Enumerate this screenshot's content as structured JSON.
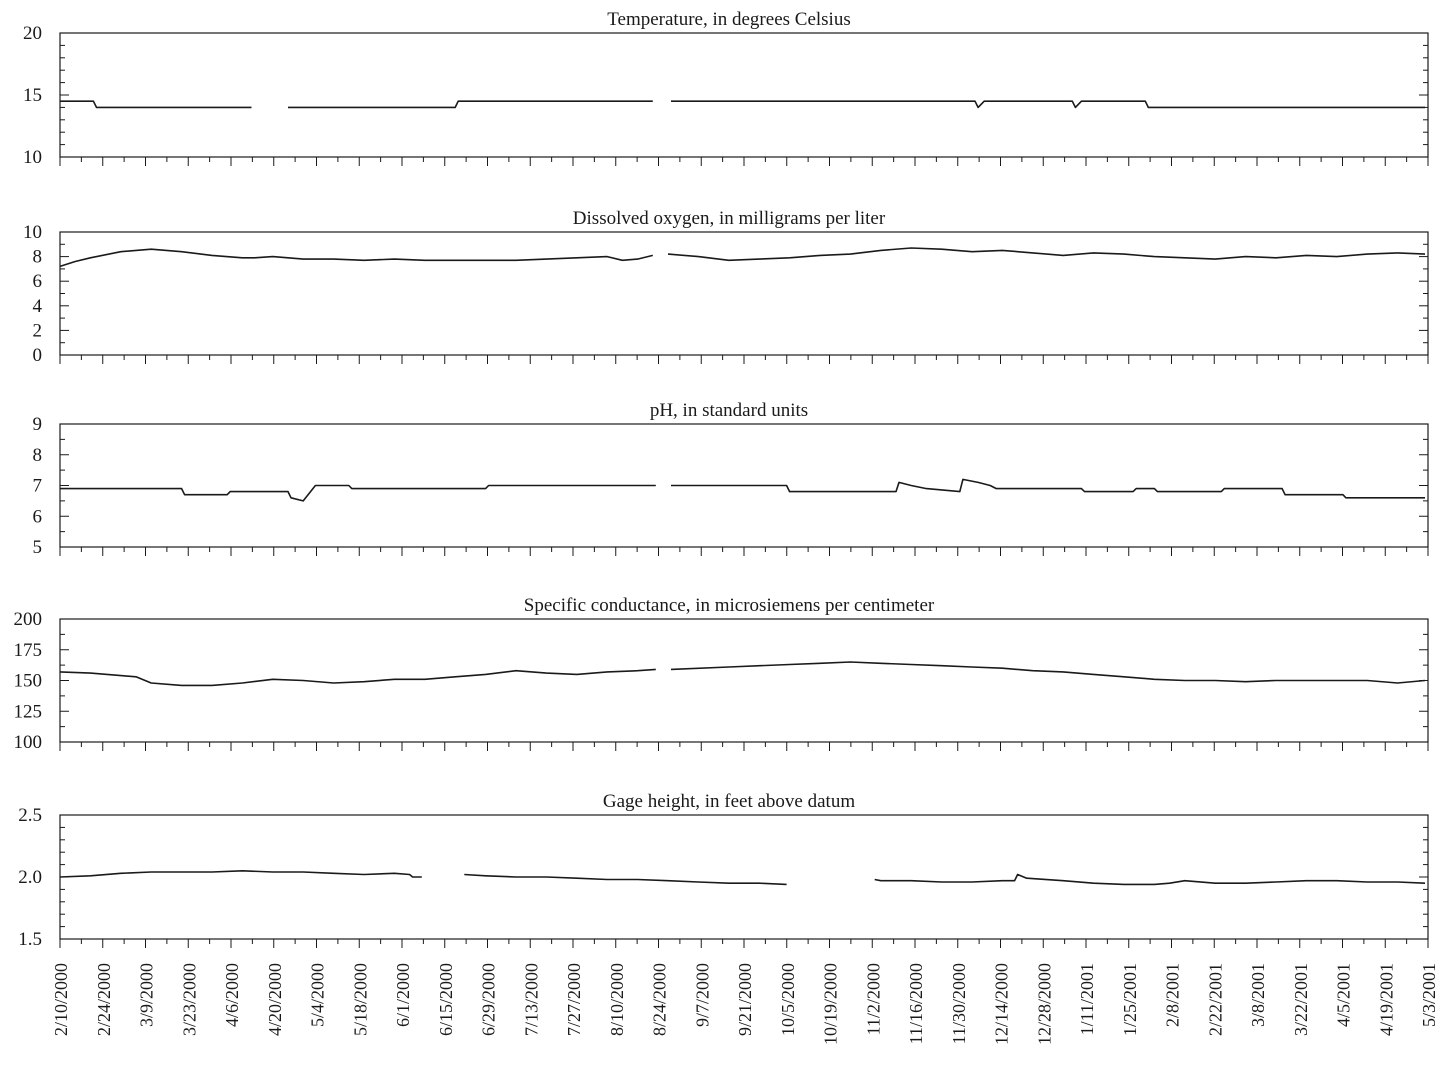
{
  "chart_data": [
    {
      "type": "line",
      "title": "Temperature, in degrees Celsius",
      "ylim": [
        10,
        20
      ],
      "yticks": [
        "10",
        "15",
        "20"
      ],
      "series": [
        {
          "values": [
            [
              0,
              14.5
            ],
            [
              1.1,
              14.5
            ],
            [
              1.2,
              14.0
            ],
            [
              6.3,
              14.0
            ],
            [
              null,
              null
            ],
            [
              7.5,
              14.0
            ],
            [
              13.0,
              14.0
            ],
            [
              13.1,
              14.5
            ],
            [
              19.5,
              14.5
            ],
            [
              null,
              null
            ],
            [
              20.1,
              14.5
            ],
            [
              30.1,
              14.5
            ],
            [
              30.2,
              14.0
            ],
            [
              30.4,
              14.5
            ],
            [
              33.3,
              14.5
            ],
            [
              33.4,
              14.0
            ],
            [
              33.6,
              14.5
            ],
            [
              35.7,
              14.5
            ],
            [
              35.8,
              14.0
            ],
            [
              44.9,
              14.0
            ]
          ]
        }
      ]
    },
    {
      "type": "line",
      "title": "Dissolved oxygen, in milligrams per liter",
      "ylim": [
        0,
        10
      ],
      "yticks": [
        "0",
        "2",
        "4",
        "6",
        "8",
        "10"
      ],
      "series": [
        {
          "values": [
            [
              0,
              7.2
            ],
            [
              0.5,
              7.6
            ],
            [
              1,
              7.9
            ],
            [
              2,
              8.4
            ],
            [
              3,
              8.6
            ],
            [
              4,
              8.4
            ],
            [
              5,
              8.1
            ],
            [
              6,
              7.9
            ],
            [
              6.4,
              7.9
            ],
            [
              7,
              8.0
            ],
            [
              8,
              7.8
            ],
            [
              9,
              7.8
            ],
            [
              10,
              7.7
            ],
            [
              11,
              7.8
            ],
            [
              12,
              7.7
            ],
            [
              13,
              7.7
            ],
            [
              14,
              7.7
            ],
            [
              15,
              7.7
            ],
            [
              16,
              7.8
            ],
            [
              17,
              7.9
            ],
            [
              18,
              8.0
            ],
            [
              18.5,
              7.7
            ],
            [
              19,
              7.8
            ],
            [
              19.5,
              8.1
            ],
            [
              null,
              null
            ],
            [
              20,
              8.2
            ],
            [
              21,
              8.0
            ],
            [
              22,
              7.7
            ],
            [
              23,
              7.8
            ],
            [
              24,
              7.9
            ],
            [
              25,
              8.1
            ],
            [
              26,
              8.2
            ],
            [
              27,
              8.5
            ],
            [
              28,
              8.7
            ],
            [
              29,
              8.6
            ],
            [
              30,
              8.4
            ],
            [
              31,
              8.5
            ],
            [
              32,
              8.3
            ],
            [
              33,
              8.1
            ],
            [
              34,
              8.3
            ],
            [
              35,
              8.2
            ],
            [
              36,
              8.0
            ],
            [
              37,
              7.9
            ],
            [
              38,
              7.8
            ],
            [
              39,
              8.0
            ],
            [
              40,
              7.9
            ],
            [
              41,
              8.1
            ],
            [
              42,
              8.0
            ],
            [
              43,
              8.2
            ],
            [
              44,
              8.3
            ],
            [
              44.9,
              8.2
            ]
          ]
        }
      ]
    },
    {
      "type": "line",
      "title": "pH, in standard units",
      "ylim": [
        5,
        9
      ],
      "yticks": [
        "5",
        "6",
        "7",
        "8",
        "9"
      ],
      "series": [
        {
          "values": [
            [
              0,
              6.9
            ],
            [
              4,
              6.9
            ],
            [
              4.1,
              6.7
            ],
            [
              5.5,
              6.7
            ],
            [
              5.6,
              6.8
            ],
            [
              7.5,
              6.8
            ],
            [
              7.6,
              6.6
            ],
            [
              8,
              6.5
            ],
            [
              8.4,
              7.0
            ],
            [
              9.5,
              7.0
            ],
            [
              9.6,
              6.9
            ],
            [
              14,
              6.9
            ],
            [
              14.1,
              7.0
            ],
            [
              19.6,
              7.0
            ],
            [
              null,
              null
            ],
            [
              20.1,
              7.0
            ],
            [
              23.9,
              7.0
            ],
            [
              24,
              6.8
            ],
            [
              27.5,
              6.8
            ],
            [
              27.6,
              7.1
            ],
            [
              28,
              7.0
            ],
            [
              28.5,
              6.9
            ],
            [
              29.6,
              6.8
            ],
            [
              29.7,
              7.2
            ],
            [
              30.2,
              7.1
            ],
            [
              30.6,
              7.0
            ],
            [
              30.8,
              6.9
            ],
            [
              33.6,
              6.9
            ],
            [
              33.7,
              6.8
            ],
            [
              35.3,
              6.8
            ],
            [
              35.4,
              6.9
            ],
            [
              36,
              6.9
            ],
            [
              36.1,
              6.8
            ],
            [
              38.2,
              6.8
            ],
            [
              38.3,
              6.9
            ],
            [
              40.2,
              6.9
            ],
            [
              40.3,
              6.7
            ],
            [
              42.2,
              6.7
            ],
            [
              42.3,
              6.6
            ],
            [
              44.9,
              6.6
            ]
          ]
        }
      ]
    },
    {
      "type": "line",
      "title": "Specific conductance, in microsiemens per centimeter",
      "ylim": [
        100,
        200
      ],
      "yticks": [
        "100",
        "125",
        "150",
        "175",
        "200"
      ],
      "series": [
        {
          "values": [
            [
              0,
              157
            ],
            [
              1,
              156
            ],
            [
              2,
              154
            ],
            [
              2.5,
              153
            ],
            [
              3,
              148
            ],
            [
              4,
              146
            ],
            [
              5,
              146
            ],
            [
              6,
              148
            ],
            [
              7,
              151
            ],
            [
              8,
              150
            ],
            [
              9,
              148
            ],
            [
              10,
              149
            ],
            [
              11,
              151
            ],
            [
              12,
              151
            ],
            [
              13,
              153
            ],
            [
              14,
              155
            ],
            [
              15,
              158
            ],
            [
              16,
              156
            ],
            [
              17,
              155
            ],
            [
              18,
              157
            ],
            [
              19,
              158
            ],
            [
              19.6,
              159
            ],
            [
              null,
              null
            ],
            [
              20.1,
              159
            ],
            [
              22,
              161
            ],
            [
              24,
              163
            ],
            [
              25,
              164
            ],
            [
              26,
              165
            ],
            [
              27,
              164
            ],
            [
              28,
              163
            ],
            [
              29,
              162
            ],
            [
              30,
              161
            ],
            [
              31,
              160
            ],
            [
              32,
              158
            ],
            [
              33,
              157
            ],
            [
              34,
              155
            ],
            [
              35,
              153
            ],
            [
              36,
              151
            ],
            [
              37,
              150
            ],
            [
              38,
              150
            ],
            [
              39,
              149
            ],
            [
              40,
              150
            ],
            [
              41,
              150
            ],
            [
              42,
              150
            ],
            [
              43,
              150
            ],
            [
              44,
              148
            ],
            [
              44.9,
              150
            ]
          ]
        }
      ]
    },
    {
      "type": "line",
      "title": "Gage height, in feet above datum",
      "ylim": [
        1.5,
        2.5
      ],
      "yticks": [
        "1.5",
        "2.0",
        "2.5"
      ],
      "series": [
        {
          "values": [
            [
              0,
              2.0
            ],
            [
              1,
              2.01
            ],
            [
              2,
              2.03
            ],
            [
              3,
              2.04
            ],
            [
              4,
              2.04
            ],
            [
              5,
              2.04
            ],
            [
              6,
              2.05
            ],
            [
              7,
              2.04
            ],
            [
              8,
              2.04
            ],
            [
              9,
              2.03
            ],
            [
              10,
              2.02
            ],
            [
              11,
              2.03
            ],
            [
              11.5,
              2.02
            ],
            [
              11.6,
              2.0
            ],
            [
              11.9,
              2.0
            ],
            [
              null,
              null
            ],
            [
              13.3,
              2.02
            ],
            [
              14,
              2.01
            ],
            [
              15,
              2.0
            ],
            [
              16,
              2.0
            ],
            [
              17,
              1.99
            ],
            [
              18,
              1.98
            ],
            [
              19,
              1.98
            ],
            [
              20,
              1.97
            ],
            [
              21,
              1.96
            ],
            [
              22,
              1.95
            ],
            [
              23,
              1.95
            ],
            [
              23.9,
              1.94
            ],
            [
              null,
              null
            ],
            [
              26.8,
              1.98
            ],
            [
              27,
              1.97
            ],
            [
              28,
              1.97
            ],
            [
              29,
              1.96
            ],
            [
              30,
              1.96
            ],
            [
              31,
              1.97
            ],
            [
              31.4,
              1.97
            ],
            [
              31.5,
              2.02
            ],
            [
              31.8,
              1.99
            ],
            [
              33,
              1.97
            ],
            [
              34,
              1.95
            ],
            [
              35,
              1.94
            ],
            [
              36,
              1.94
            ],
            [
              36.5,
              1.95
            ],
            [
              37,
              1.97
            ],
            [
              38,
              1.95
            ],
            [
              39,
              1.95
            ],
            [
              40,
              1.96
            ],
            [
              41,
              1.97
            ],
            [
              42,
              1.97
            ],
            [
              43,
              1.96
            ],
            [
              44,
              1.96
            ],
            [
              44.9,
              1.95
            ]
          ]
        }
      ]
    }
  ],
  "x_axis": {
    "domain": [
      0,
      45
    ],
    "ticks": [
      "2/10/2000",
      "2/24/2000",
      "3/9/2000",
      "3/23/2000",
      "4/6/2000",
      "4/20/2000",
      "5/4/2000",
      "5/18/2000",
      "6/1/2000",
      "6/15/2000",
      "6/29/2000",
      "7/13/2000",
      "7/27/2000",
      "8/10/2000",
      "8/24/2000",
      "9/7/2000",
      "9/21/2000",
      "10/5/2000",
      "10/19/2000",
      "11/2/2000",
      "11/16/2000",
      "11/30/2000",
      "12/14/2000",
      "12/28/2000",
      "1/11/2001",
      "1/25/2001",
      "2/8/2001",
      "2/22/2001",
      "3/8/2001",
      "3/22/2001",
      "4/5/2001",
      "4/19/2001",
      "5/3/2001"
    ]
  },
  "colors": {
    "line": "#1a1a1a",
    "frame": "#1a1a1a",
    "background": "#ffffff"
  }
}
